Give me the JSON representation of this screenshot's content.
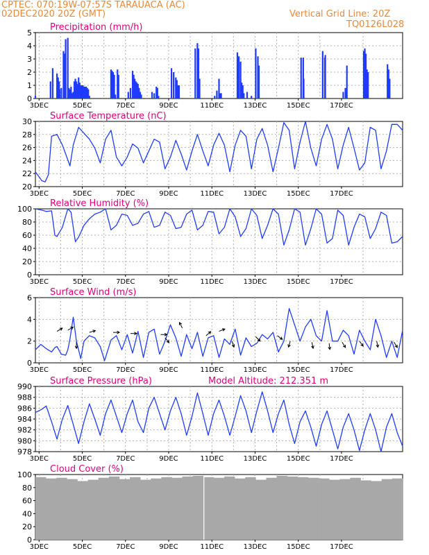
{
  "header": {
    "station": "CPTEC:   070:19W-07:57S   TARAUACA (AC)",
    "run": "02DEC2020 20Z (GMT)",
    "grid_note": "Vertical Grid Line: 20Z",
    "code": "TQ0126L028"
  },
  "colors": {
    "header": "#e8893a",
    "title": "#e0007a",
    "series": "#1f3bff",
    "cloud": "#a8a8a8",
    "axis": "#000000",
    "grid": "#b0b0b0"
  },
  "x_ticks": [
    "3DEC",
    "5DEC",
    "7DEC",
    "9DEC",
    "11DEC",
    "13DEC",
    "15DEC",
    "17DEC"
  ],
  "chart_data": [
    {
      "type": "bar",
      "title": "Precipitation (mm/h)",
      "ylim": [
        0,
        5
      ],
      "yticks": [
        "0",
        "1",
        "2",
        "3",
        "4",
        "5"
      ],
      "x_start": "2020-12-02 20Z",
      "x_end": "2020-12-17 00Z",
      "x_unit": "days",
      "grid": "dotted",
      "x": [
        0.0,
        0.7,
        0.8,
        1.0,
        1.05,
        1.1,
        1.12,
        1.2,
        1.3,
        1.35,
        1.4,
        1.5,
        1.55,
        1.6,
        1.65,
        1.7,
        1.75,
        1.8,
        1.85,
        1.9,
        1.95,
        2.0,
        2.05,
        2.1,
        2.15,
        2.2,
        2.25,
        2.3,
        2.35,
        2.4,
        2.45,
        2.5,
        3.5,
        3.55,
        3.6,
        3.65,
        3.7,
        3.8,
        3.85,
        4.3,
        4.4,
        4.5,
        4.55,
        4.6,
        4.65,
        4.7,
        4.75,
        4.8,
        4.85,
        4.9,
        5.4,
        5.5,
        5.6,
        5.65,
        5.7,
        6.3,
        6.4,
        6.5,
        6.55,
        6.6,
        6.65,
        7.4,
        7.5,
        7.55,
        7.6,
        8.3,
        8.4,
        8.5,
        8.55,
        8.6,
        9.35,
        9.42,
        9.5,
        9.55,
        9.6,
        9.65,
        9.8,
        10.0,
        10.2,
        10.3,
        10.35,
        12.3,
        12.4,
        12.42,
        13.3,
        13.4,
        13.42,
        14.25,
        14.35,
        14.4,
        14.42,
        15.2,
        15.25,
        15.3,
        15.35,
        15.4,
        16.3,
        16.35,
        16.4
      ],
      "values": [
        0.2,
        1.3,
        2.3,
        1.9,
        1.6,
        1.3,
        0.7,
        0.8,
        3.6,
        3.4,
        4.5,
        4.6,
        0.8,
        0.7,
        0.9,
        0.4,
        0.5,
        1.3,
        1.5,
        1.3,
        1.1,
        1.6,
        1.2,
        1.0,
        1.0,
        1.0,
        0.9,
        0.9,
        0.9,
        0.8,
        0.7,
        0.2,
        2.2,
        2.1,
        2.0,
        1.8,
        0.3,
        2.2,
        1.8,
        0.5,
        0.8,
        2.1,
        1.8,
        1.5,
        1.3,
        1.2,
        1.1,
        0.8,
        0.5,
        0.3,
        0.5,
        0.4,
        0.9,
        0.8,
        0.2,
        2.3,
        2.0,
        1.6,
        1.4,
        1.0,
        1.0,
        3.8,
        4.2,
        3.8,
        1.5,
        0.2,
        0.6,
        1.5,
        0.4,
        0.4,
        3.5,
        3.2,
        2.8,
        1.2,
        1.0,
        0.4,
        0.5,
        0.2,
        3.8,
        3.2,
        2.5,
        3.1,
        3.1,
        1.5,
        3.6,
        3.1,
        3.3,
        0.5,
        0.8,
        0.6,
        2.5,
        3.6,
        3.8,
        3.4,
        2.2,
        2.0,
        2.6,
        2.2,
        1.5
      ]
    },
    {
      "type": "line",
      "title": "Surface Temperature (nC)",
      "ylim": [
        20,
        31
      ],
      "yticks": [
        "20",
        "22",
        "24",
        "26",
        "28",
        "30"
      ],
      "x_start": "2020-12-02 20Z",
      "x_unit": "days",
      "x": [
        0.0,
        0.3,
        0.45,
        0.6,
        0.75,
        1.0,
        1.25,
        1.5,
        1.6,
        1.75,
        2.0,
        2.25,
        2.5,
        2.75,
        3.0,
        3.25,
        3.5,
        3.75,
        4.0,
        4.25,
        4.5,
        4.75,
        5.0,
        5.25,
        5.5,
        5.75,
        6.0,
        6.25,
        6.5,
        6.75,
        7.0,
        7.25,
        7.5,
        7.75,
        8.0,
        8.25,
        8.5,
        8.75,
        9.0,
        9.25,
        9.5,
        9.75,
        10.0,
        10.25,
        10.5,
        10.75,
        11.0,
        11.25,
        11.5,
        11.75,
        12.0,
        12.25,
        12.5,
        12.75,
        13.0,
        13.25,
        13.5,
        13.75,
        14.0,
        14.25,
        14.5,
        14.75,
        15.0,
        15.25,
        15.5,
        15.75,
        16.0,
        16.25,
        16.5,
        16.75,
        17.0
      ],
      "values": [
        22.5,
        21.0,
        20.8,
        22.0,
        28.5,
        28.8,
        27.0,
        24.5,
        23.5,
        27.0,
        30.0,
        29.0,
        28.0,
        26.5,
        24.0,
        28.0,
        29.5,
        25.0,
        23.5,
        25.0,
        27.2,
        26.5,
        24.0,
        26.0,
        28.0,
        27.5,
        23.0,
        25.0,
        27.8,
        25.5,
        22.8,
        26.0,
        28.8,
        26.0,
        23.5,
        27.0,
        29.0,
        27.0,
        22.5,
        27.0,
        29.5,
        28.5,
        23.0,
        28.0,
        29.8,
        27.0,
        22.5,
        26.5,
        30.8,
        29.5,
        23.0,
        27.5,
        31.0,
        26.5,
        23.5,
        28.0,
        30.5,
        28.0,
        23.0,
        27.0,
        30.0,
        26.5,
        22.8,
        24.0,
        30.0,
        29.5,
        23.0,
        26.0,
        30.5,
        30.5,
        29.5
      ]
    },
    {
      "type": "line",
      "title": "Relative Humidity (%)",
      "ylim": [
        0,
        100
      ],
      "yticks": [
        "0",
        "20",
        "40",
        "60",
        "80",
        "100"
      ],
      "x_start": "2020-12-02 20Z",
      "x_unit": "days",
      "x": [
        0.0,
        0.3,
        0.5,
        0.75,
        0.9,
        1.0,
        1.25,
        1.5,
        1.65,
        1.85,
        2.0,
        2.25,
        2.5,
        2.75,
        3.0,
        3.25,
        3.5,
        3.75,
        4.0,
        4.25,
        4.5,
        4.75,
        5.0,
        5.25,
        5.5,
        5.75,
        6.0,
        6.25,
        6.5,
        6.75,
        7.0,
        7.25,
        7.5,
        7.75,
        8.0,
        8.25,
        8.5,
        8.75,
        9.0,
        9.25,
        9.5,
        9.75,
        10.0,
        10.25,
        10.5,
        10.75,
        11.0,
        11.25,
        11.5,
        11.75,
        12.0,
        12.25,
        12.5,
        12.75,
        13.0,
        13.25,
        13.5,
        13.75,
        14.0,
        14.25,
        14.5,
        14.75,
        15.0,
        15.25,
        15.5,
        15.75,
        16.0,
        16.25,
        16.5,
        16.75,
        17.0
      ],
      "values": [
        100,
        98,
        96,
        97,
        60,
        58,
        72,
        100,
        95,
        50,
        57,
        75,
        85,
        92,
        95,
        100,
        68,
        75,
        92,
        90,
        75,
        78,
        92,
        96,
        72,
        75,
        95,
        90,
        70,
        72,
        92,
        98,
        68,
        75,
        96,
        95,
        62,
        72,
        100,
        88,
        58,
        70,
        100,
        90,
        55,
        75,
        100,
        92,
        45,
        68,
        100,
        95,
        45,
        70,
        100,
        92,
        48,
        55,
        98,
        90,
        45,
        72,
        92,
        88,
        55,
        70,
        95,
        90,
        48,
        50,
        58
      ]
    },
    {
      "type": "line",
      "title": "Surface Wind (m/s)",
      "ylim": [
        0,
        6
      ],
      "yticks": [
        "0",
        "2",
        "4",
        "6"
      ],
      "x_start": "2020-12-02 20Z",
      "x_unit": "days",
      "x": [
        0.0,
        0.25,
        0.5,
        0.75,
        0.9,
        1.0,
        1.2,
        1.4,
        1.5,
        1.6,
        1.75,
        1.9,
        2.1,
        2.25,
        2.5,
        2.75,
        3.0,
        3.2,
        3.5,
        3.75,
        4.0,
        4.25,
        4.5,
        4.75,
        5.0,
        5.25,
        5.5,
        5.75,
        6.0,
        6.25,
        6.5,
        6.75,
        7.0,
        7.25,
        7.5,
        7.75,
        8.0,
        8.25,
        8.5,
        8.75,
        9.0,
        9.25,
        9.5,
        9.75,
        10.0,
        10.25,
        10.5,
        10.75,
        11.0,
        11.25,
        11.5,
        11.75,
        12.0,
        12.25,
        12.5,
        12.75,
        13.0,
        13.25,
        13.5,
        13.75,
        14.0,
        14.25,
        14.5,
        14.75,
        15.0,
        15.25,
        15.5,
        15.75,
        16.0,
        16.25,
        16.5,
        16.75,
        17.0
      ],
      "values": [
        1.2,
        1.7,
        1.3,
        1.0,
        1.4,
        1.5,
        0.8,
        0.7,
        1.2,
        2.2,
        4.2,
        2.0,
        0.4,
        2.0,
        2.5,
        2.3,
        1.5,
        0.2,
        2.1,
        2.5,
        1.2,
        2.6,
        0.9,
        2.9,
        0.5,
        2.8,
        3.1,
        0.8,
        2.0,
        3.5,
        2.3,
        0.6,
        2.6,
        1.3,
        2.8,
        0.6,
        2.3,
        2.5,
        0.5,
        2.2,
        1.7,
        3.1,
        0.7,
        2.3,
        1.5,
        1.8,
        2.6,
        2.2,
        2.8,
        1.0,
        2.0,
        5.0,
        3.5,
        2.0,
        3.3,
        4.0,
        2.5,
        2.0,
        4.8,
        2.0,
        2.0,
        3.0,
        2.5,
        0.8,
        3.0,
        2.0,
        1.2,
        4.0,
        2.5,
        0.5,
        2.0,
        0.5,
        3.0
      ]
    },
    {
      "type": "line",
      "title": "Surface Pressure (hPa)",
      "annotation": "Model Altitude: 212.351 m",
      "ylim": [
        978,
        990
      ],
      "yticks": [
        "978",
        "980",
        "982",
        "984",
        "986",
        "988",
        "990"
      ],
      "x_start": "2020-12-02 20Z",
      "x_unit": "days",
      "x": [
        0.0,
        0.3,
        0.5,
        0.75,
        1.0,
        1.25,
        1.5,
        1.75,
        2.0,
        2.25,
        2.5,
        2.75,
        3.0,
        3.25,
        3.5,
        3.75,
        4.0,
        4.25,
        4.5,
        4.75,
        5.0,
        5.25,
        5.5,
        5.75,
        6.0,
        6.25,
        6.5,
        6.75,
        7.0,
        7.25,
        7.5,
        7.75,
        8.0,
        8.25,
        8.5,
        8.75,
        9.0,
        9.25,
        9.5,
        9.75,
        10.0,
        10.25,
        10.5,
        10.75,
        11.0,
        11.25,
        11.5,
        11.75,
        12.0,
        12.25,
        12.5,
        12.75,
        13.0,
        13.25,
        13.5,
        13.75,
        14.0,
        14.25,
        14.5,
        14.75,
        15.0,
        15.25,
        15.5,
        15.75,
        16.0,
        16.25,
        16.5,
        16.75,
        17.0
      ],
      "values": [
        985.2,
        985.8,
        986.4,
        983.5,
        980.3,
        984.0,
        986.5,
        983.0,
        979.5,
        983.5,
        986.8,
        984.0,
        981.0,
        985.0,
        987.5,
        984.5,
        981.5,
        985.0,
        987.5,
        983.5,
        981.5,
        986.0,
        988.0,
        985.0,
        982.0,
        985.5,
        988.0,
        985.0,
        981.0,
        984.5,
        988.8,
        985.0,
        981.0,
        985.0,
        987.5,
        984.5,
        981.0,
        984.5,
        988.3,
        985.5,
        981.5,
        985.5,
        989.0,
        985.5,
        981.5,
        985.0,
        987.5,
        983.0,
        979.5,
        983.5,
        985.5,
        982.5,
        979.0,
        983.0,
        985.5,
        982.0,
        978.5,
        982.5,
        985.0,
        982.0,
        978.2,
        982.0,
        985.0,
        982.0,
        978.0,
        982.5,
        985.0,
        981.5,
        979.0
      ]
    },
    {
      "type": "bar",
      "title": "Cloud Cover (%)",
      "ylim": [
        0,
        100
      ],
      "yticks": [
        "0",
        "20",
        "40",
        "60",
        "80",
        "100"
      ],
      "x_start": "2020-12-02 20Z",
      "x_unit": "days",
      "description_values": "hourly, mostly 88-99%",
      "x": [
        0.0,
        0.5,
        1.0,
        1.5,
        2.0,
        2.5,
        3.0,
        3.5,
        4.0,
        4.5,
        5.0,
        5.5,
        6.0,
        6.5,
        7.0,
        7.5,
        8.0,
        8.5,
        9.0,
        9.5,
        10.0,
        10.5,
        11.0,
        11.5,
        12.0,
        12.5,
        13.0,
        13.5,
        14.0,
        14.5,
        15.0,
        15.5,
        16.0,
        16.5,
        17.0
      ],
      "values": [
        96,
        94,
        95,
        93,
        90,
        92,
        95,
        97,
        93,
        96,
        92,
        94,
        96,
        95,
        97,
        98,
        96,
        95,
        97,
        94,
        96,
        92,
        95,
        98,
        97,
        96,
        95,
        94,
        92,
        93,
        95,
        91,
        90,
        93,
        94
      ]
    }
  ]
}
